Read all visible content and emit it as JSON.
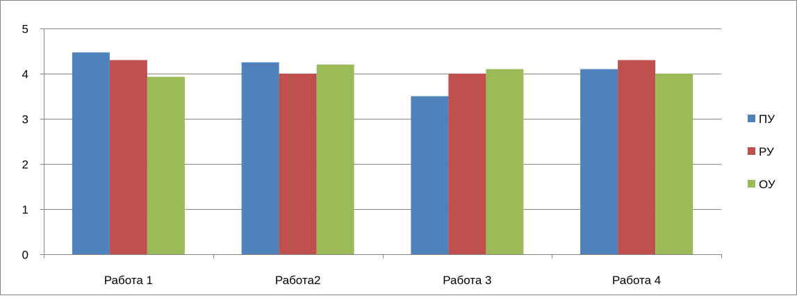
{
  "chart_data": {
    "type": "bar",
    "categories": [
      "Работа 1",
      "Работа2",
      "Работа 3",
      "Работа 4"
    ],
    "series": [
      {
        "name": "ПУ",
        "values": [
          4.47,
          4.25,
          3.5,
          4.1
        ]
      },
      {
        "name": "РУ",
        "values": [
          4.3,
          4.0,
          4.0,
          4.3
        ]
      },
      {
        "name": "ОУ",
        "values": [
          3.93,
          4.2,
          4.1,
          4.0
        ]
      }
    ],
    "ylim": [
      0,
      5
    ],
    "yticks": [
      "0",
      "1",
      "2",
      "3",
      "4",
      "5"
    ],
    "grid": true,
    "legend_position": "right",
    "colors": {
      "series": [
        "#4F81BD",
        "#C0504D",
        "#9BBB59"
      ],
      "grid": "#868686",
      "axis": "#868686"
    }
  }
}
